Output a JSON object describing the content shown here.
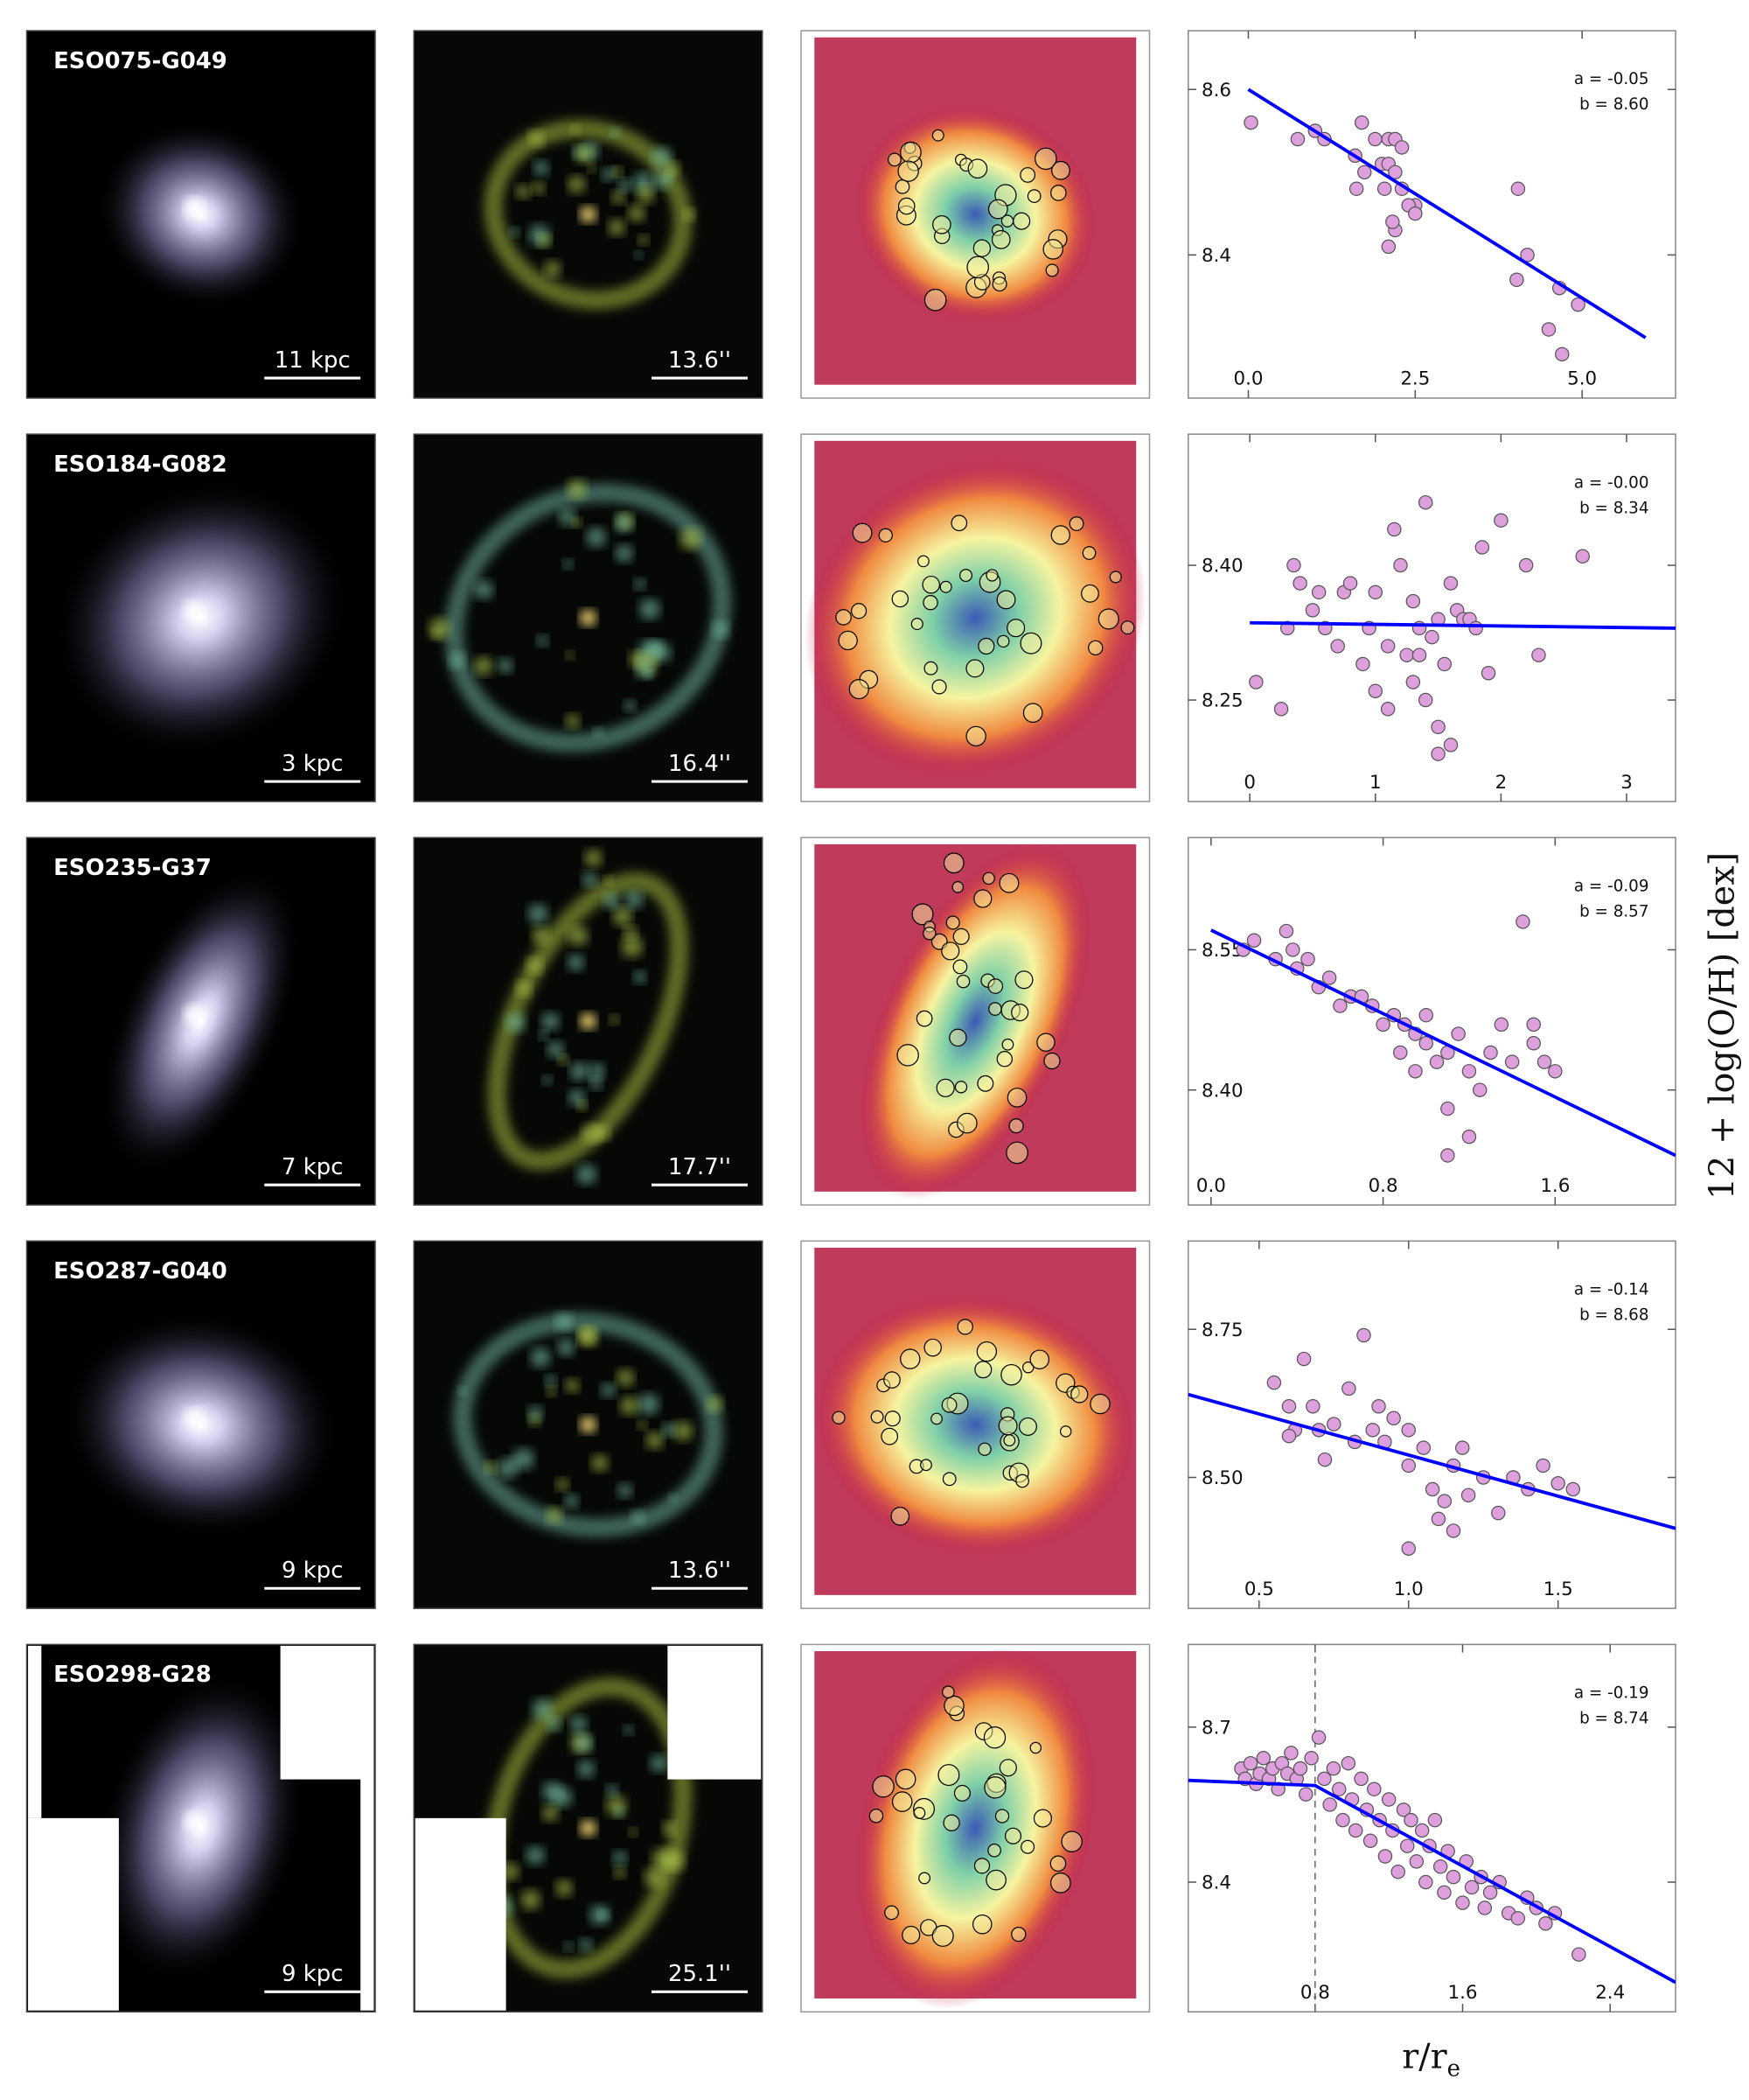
{
  "figure": {
    "ylabel": "12 + log(O/H) [dex]",
    "xlabel": "r/r",
    "xlabel_sub": "e"
  },
  "panels": [
    {
      "name": "ESO075-G049",
      "scale_kpc": "11 kpc",
      "scale_arcsec": "13.6''"
    },
    {
      "name": "ESO184-G082",
      "scale_kpc": "3 kpc",
      "scale_arcsec": "16.4''"
    },
    {
      "name": "ESO235-G37",
      "scale_kpc": "7 kpc",
      "scale_arcsec": "17.7''"
    },
    {
      "name": "ESO287-G040",
      "scale_kpc": "9 kpc",
      "scale_arcsec": "13.6''"
    },
    {
      "name": "ESO298-G28",
      "scale_kpc": "9 kpc",
      "scale_arcsec": "25.1''"
    }
  ],
  "chart_data": [
    {
      "type": "scatter",
      "color": "#dda0dd",
      "line_color": "#0000ff",
      "annotations": [
        "a = -0.05",
        "b = 8.60"
      ],
      "xlim": [
        -0.9,
        6.4
      ],
      "ylim": [
        8.227,
        8.671
      ],
      "xticks": [
        {
          "value": 0,
          "label": "0.0"
        },
        2.5,
        {
          "value": 5,
          "label": "5.0"
        }
      ],
      "yticks": [
        8.4,
        8.6
      ],
      "x": [
        0.04,
        0.74,
        1.0,
        1.14,
        1.7,
        1.6,
        1.62,
        1.74,
        1.9,
        2.1,
        2.2,
        2.0,
        2.1,
        2.2,
        2.3,
        2.5,
        2.4,
        2.1,
        2.2,
        2.16,
        2.3,
        2.04,
        4.04,
        4.18,
        4.02,
        4.66,
        4.5,
        4.94,
        4.7,
        2.5
      ],
      "y": [
        8.56,
        8.54,
        8.55,
        8.54,
        8.56,
        8.52,
        8.48,
        8.5,
        8.54,
        8.54,
        8.54,
        8.51,
        8.51,
        8.5,
        8.48,
        8.46,
        8.46,
        8.41,
        8.43,
        8.44,
        8.53,
        8.48,
        8.48,
        8.4,
        8.37,
        8.36,
        8.31,
        8.34,
        8.28,
        8.45
      ],
      "fit": {
        "x": [
          0,
          5.95
        ],
        "y": [
          8.6,
          8.3
        ]
      }
    },
    {
      "type": "scatter",
      "color": "#dda0dd",
      "line_color": "#0000ff",
      "annotations": [
        "a = -0.00",
        "b = 8.34"
      ],
      "xlim": [
        -0.49,
        3.39
      ],
      "ylim": [
        8.137,
        8.546
      ],
      "xticks": [
        0,
        1,
        2,
        3
      ],
      "yticks": [
        8.25,
        {
          "value": 8.4,
          "label": "8.40"
        }
      ],
      "x": [
        0.05,
        0.3,
        0.35,
        0.4,
        0.5,
        0.55,
        0.6,
        0.7,
        0.75,
        0.8,
        0.9,
        0.95,
        1.0,
        1.0,
        1.1,
        1.15,
        1.2,
        1.25,
        1.3,
        1.3,
        1.35,
        1.35,
        1.4,
        1.4,
        1.45,
        1.5,
        1.5,
        1.55,
        1.6,
        1.6,
        1.65,
        1.7,
        1.75,
        1.8,
        1.85,
        1.9,
        2.0,
        2.2,
        2.3,
        2.65,
        0.25,
        1.1,
        1.5
      ],
      "y": [
        8.27,
        8.33,
        8.4,
        8.38,
        8.35,
        8.37,
        8.33,
        8.31,
        8.37,
        8.38,
        8.29,
        8.33,
        8.26,
        8.37,
        8.31,
        8.44,
        8.4,
        8.3,
        8.27,
        8.36,
        8.33,
        8.3,
        8.25,
        8.47,
        8.32,
        8.34,
        8.22,
        8.29,
        8.38,
        8.2,
        8.35,
        8.34,
        8.34,
        8.33,
        8.42,
        8.28,
        8.45,
        8.4,
        8.3,
        8.41,
        8.24,
        8.24,
        8.19
      ],
      "fit": {
        "x": [
          0,
          3.39
        ],
        "y": [
          8.336,
          8.33
        ]
      }
    },
    {
      "type": "scatter",
      "color": "#dda0dd",
      "line_color": "#0000ff",
      "annotations": [
        "a = -0.09",
        "b = 8.57"
      ],
      "xlim": [
        -0.106,
        2.16
      ],
      "ylim": [
        8.277,
        8.67
      ],
      "xticks": [
        {
          "value": 0,
          "label": "0.0"
        },
        0.8,
        1.6
      ],
      "yticks": [
        {
          "value": 8.4,
          "label": "8.40"
        },
        8.55
      ],
      "x": [
        0.15,
        0.2,
        0.3,
        0.35,
        0.38,
        0.4,
        0.45,
        0.5,
        0.55,
        0.6,
        0.65,
        0.7,
        0.75,
        0.8,
        0.85,
        0.88,
        0.9,
        0.95,
        1.0,
        1.0,
        1.05,
        1.1,
        1.1,
        1.15,
        1.2,
        1.2,
        1.25,
        1.3,
        1.35,
        1.4,
        1.45,
        1.5,
        1.55,
        1.6,
        1.5,
        1.1,
        0.95
      ],
      "y": [
        8.55,
        8.56,
        8.54,
        8.57,
        8.55,
        8.53,
        8.54,
        8.51,
        8.52,
        8.49,
        8.5,
        8.5,
        8.49,
        8.47,
        8.48,
        8.44,
        8.47,
        8.46,
        8.45,
        8.48,
        8.43,
        8.44,
        8.38,
        8.46,
        8.42,
        8.35,
        8.4,
        8.44,
        8.47,
        8.43,
        8.58,
        8.45,
        8.43,
        8.42,
        8.47,
        8.33,
        8.42
      ],
      "fit": {
        "x": [
          0,
          2.16
        ],
        "y": [
          8.571,
          8.33
        ]
      }
    },
    {
      "type": "scatter",
      "color": "#dda0dd",
      "line_color": "#0000ff",
      "annotations": [
        "a = -0.14",
        "b = 8.68"
      ],
      "xlim": [
        0.263,
        1.893
      ],
      "ylim": [
        8.279,
        8.899
      ],
      "xticks": [
        0.5,
        {
          "value": 1,
          "label": "1.0"
        },
        1.5
      ],
      "yticks": [
        {
          "value": 8.5,
          "label": "8.50"
        },
        8.75
      ],
      "x": [
        0.55,
        0.6,
        0.62,
        0.65,
        0.68,
        0.7,
        0.72,
        0.75,
        0.8,
        0.82,
        0.85,
        0.88,
        0.9,
        0.92,
        0.95,
        1.0,
        1.0,
        1.05,
        1.08,
        1.1,
        1.12,
        1.15,
        1.18,
        1.2,
        1.25,
        1.3,
        1.35,
        1.4,
        1.45,
        1.5,
        1.55,
        1.0,
        1.15,
        0.6
      ],
      "y": [
        8.66,
        8.62,
        8.58,
        8.7,
        8.62,
        8.58,
        8.53,
        8.59,
        8.65,
        8.56,
        8.74,
        8.58,
        8.62,
        8.56,
        8.6,
        8.58,
        8.52,
        8.55,
        8.48,
        8.43,
        8.46,
        8.52,
        8.55,
        8.47,
        8.5,
        8.44,
        8.5,
        8.48,
        8.52,
        8.49,
        8.48,
        8.38,
        8.41,
        8.57
      ],
      "fit": {
        "x": [
          0.263,
          1.893
        ],
        "y": [
          8.64,
          8.414
        ]
      }
    },
    {
      "type": "scatter",
      "color": "#dda0dd",
      "line_color": "#0000ff",
      "annotations": [
        "a = -0.19",
        "b = 8.74"
      ],
      "xlim": [
        0.112,
        2.755
      ],
      "ylim": [
        8.149,
        8.86
      ],
      "xticks": [
        0.8,
        1.6,
        2.4
      ],
      "yticks": [
        8.4,
        8.7
      ],
      "break_x": 0.8,
      "x": [
        0.4,
        0.42,
        0.45,
        0.48,
        0.5,
        0.52,
        0.55,
        0.57,
        0.6,
        0.62,
        0.65,
        0.67,
        0.7,
        0.72,
        0.75,
        0.78,
        0.82,
        0.85,
        0.88,
        0.9,
        0.93,
        0.95,
        0.98,
        1.0,
        1.02,
        1.05,
        1.08,
        1.1,
        1.12,
        1.15,
        1.18,
        1.2,
        1.22,
        1.25,
        1.28,
        1.3,
        1.32,
        1.35,
        1.38,
        1.4,
        1.42,
        1.45,
        1.48,
        1.5,
        1.52,
        1.55,
        1.6,
        1.62,
        1.65,
        1.7,
        1.72,
        1.75,
        1.8,
        1.85,
        1.9,
        1.95,
        2.0,
        2.05,
        2.1,
        2.23
      ],
      "y": [
        8.62,
        8.6,
        8.63,
        8.59,
        8.61,
        8.64,
        8.6,
        8.62,
        8.58,
        8.63,
        8.61,
        8.65,
        8.6,
        8.62,
        8.57,
        8.64,
        8.68,
        8.6,
        8.55,
        8.62,
        8.58,
        8.52,
        8.63,
        8.56,
        8.5,
        8.6,
        8.54,
        8.48,
        8.58,
        8.52,
        8.45,
        8.56,
        8.5,
        8.42,
        8.54,
        8.47,
        8.52,
        8.44,
        8.5,
        8.4,
        8.47,
        8.52,
        8.43,
        8.38,
        8.46,
        8.41,
        8.36,
        8.44,
        8.39,
        8.41,
        8.35,
        8.38,
        8.4,
        8.34,
        8.33,
        8.37,
        8.35,
        8.32,
        8.34,
        8.26
      ],
      "fit": {
        "x": [
          0.112,
          0.8,
          2.755
        ],
        "y": [
          8.597,
          8.587,
          8.206
        ]
      }
    }
  ]
}
